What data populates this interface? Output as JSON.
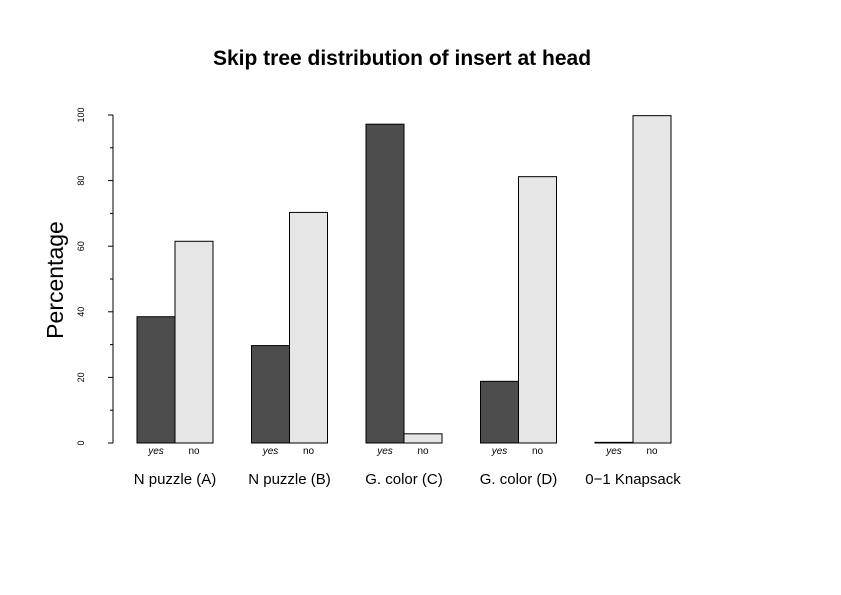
{
  "chart_data": {
    "type": "bar",
    "title": "Skip tree distribution of insert at head",
    "xlabel": "",
    "ylabel": "Percentage",
    "ylim": [
      0,
      100
    ],
    "yticks": [
      0,
      20,
      40,
      60,
      80,
      100
    ],
    "categories": [
      "N puzzle (A)",
      "N puzzle (B)",
      "G. color (C)",
      "G. color (D)",
      "0−1 Knapsack"
    ],
    "series": [
      {
        "name": "yes",
        "color": "#4d4d4d",
        "values": [
          38.5,
          29.7,
          97.2,
          18.8,
          0.2
        ]
      },
      {
        "name": "no",
        "color": "#e6e6e6",
        "values": [
          61.5,
          70.3,
          2.8,
          81.2,
          99.8
        ]
      }
    ],
    "bar_labels": [
      "yes",
      "no"
    ],
    "grid": false,
    "legend": "none"
  }
}
